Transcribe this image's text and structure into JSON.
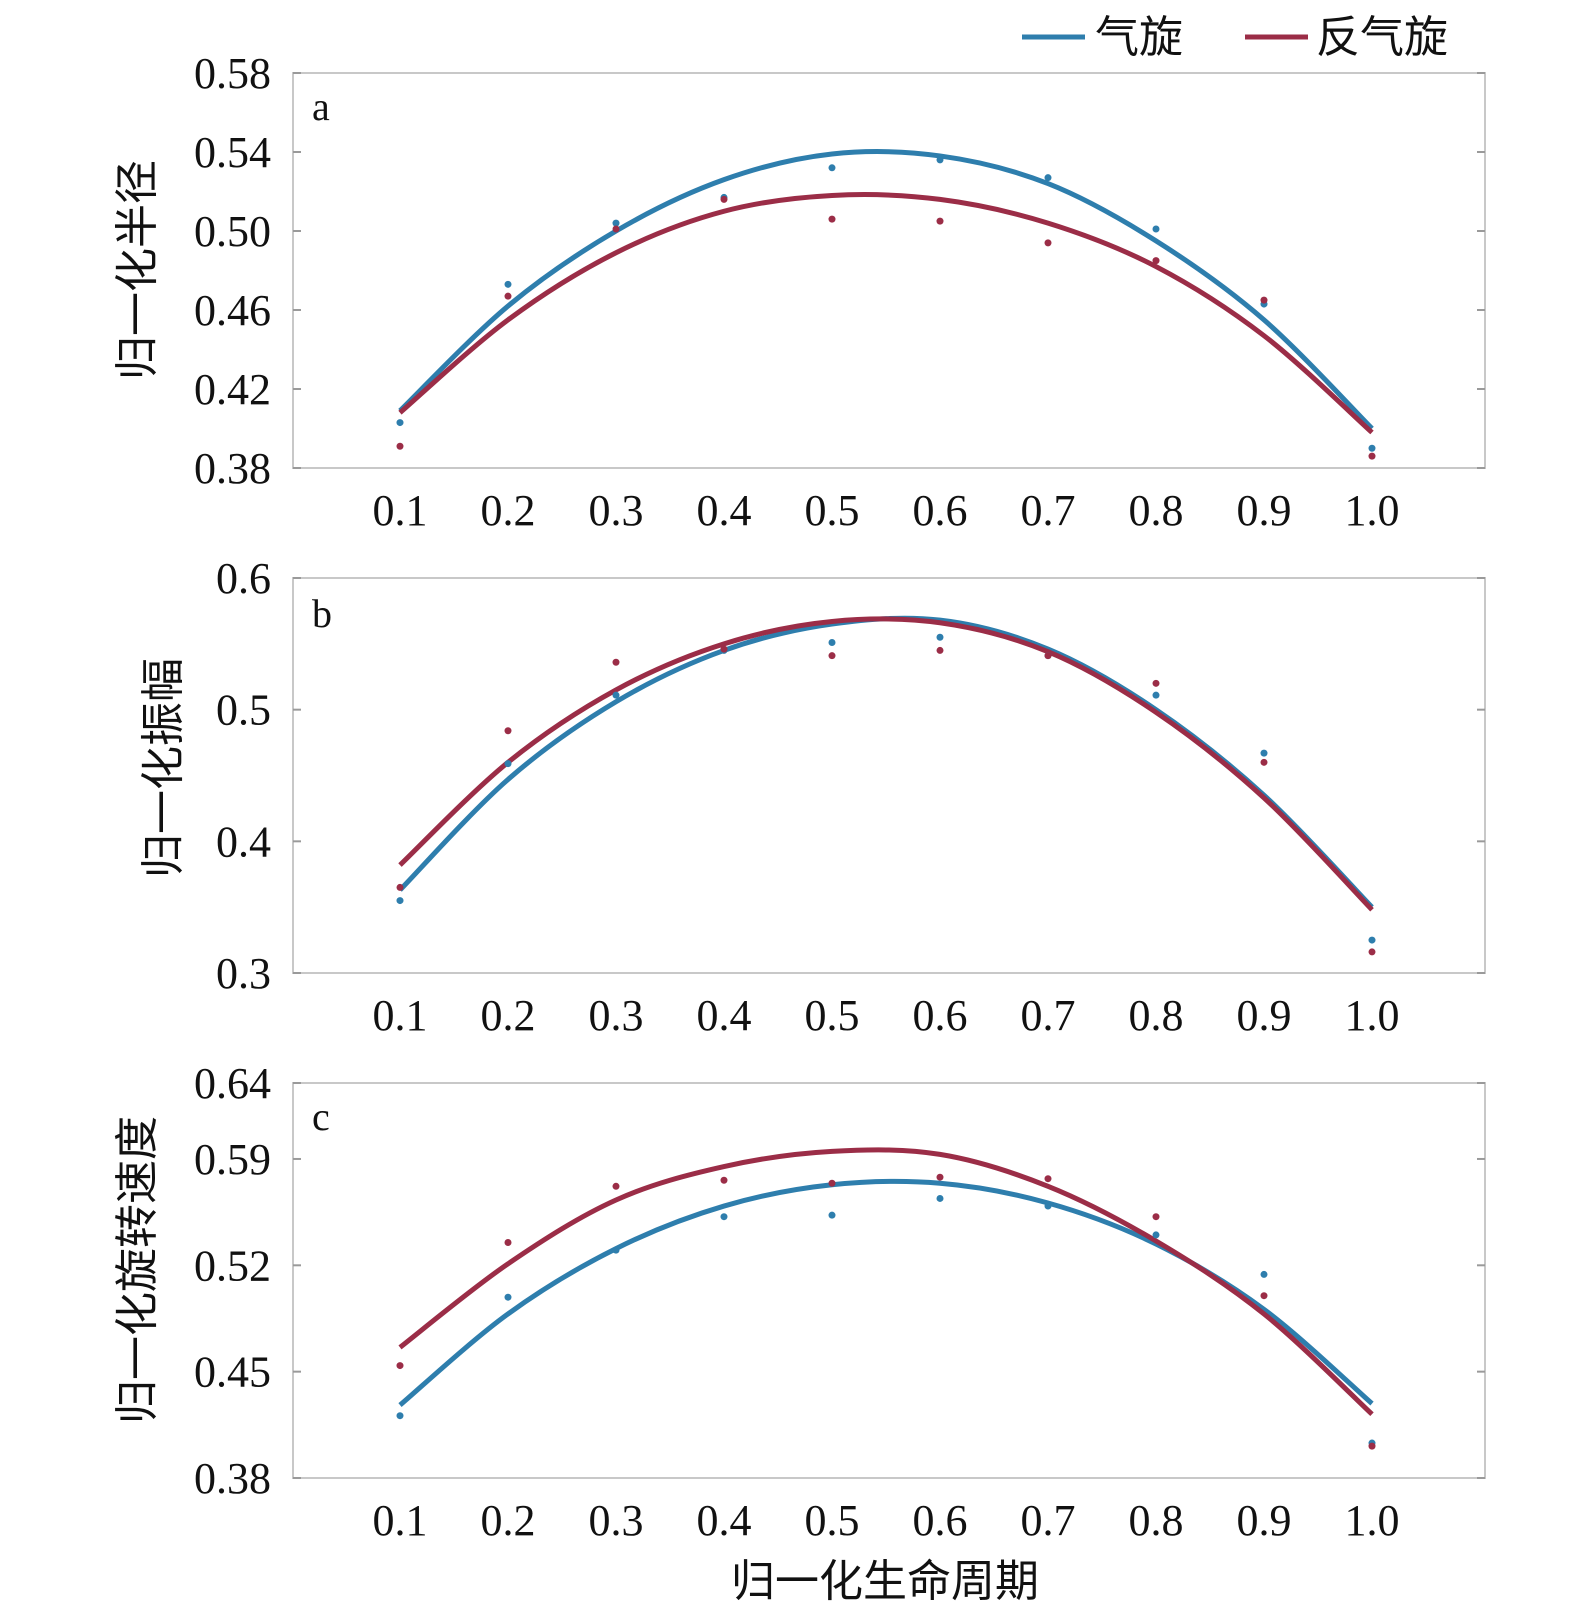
{
  "legend": [
    {
      "name": "气旋",
      "color": "#2E7EAD"
    },
    {
      "name": "反气旋",
      "color": "#9B2D47"
    }
  ],
  "xlabel": "归一化生命周期",
  "chart_data": [
    {
      "type": "scatter",
      "panel_label": "a",
      "ylabel": "归一化半径",
      "x": [
        0.1,
        0.2,
        0.3,
        0.4,
        0.5,
        0.6,
        0.7,
        0.8,
        0.9,
        1.0
      ],
      "x_tick_labels": [
        "0.1",
        "0.2",
        "0.3",
        "0.4",
        "0.5",
        "0.6",
        "0.7",
        "0.8",
        "0.9",
        "1.0"
      ],
      "y_ticks": [
        0.38,
        0.42,
        0.46,
        0.5,
        0.54,
        0.58
      ],
      "y_tick_labels": [
        "0.38",
        "0.42",
        "0.46",
        "0.50",
        "0.54",
        "0.58"
      ],
      "ylim": [
        0.38,
        0.58
      ],
      "series": [
        {
          "name": "气旋",
          "color": "#2E7EAD",
          "points": [
            0.403,
            0.473,
            0.504,
            0.517,
            0.532,
            0.536,
            0.527,
            0.501,
            0.463,
            0.39
          ],
          "fit": [
            0.409,
            0.462,
            0.5,
            0.526,
            0.539,
            0.538,
            0.524,
            0.495,
            0.455,
            0.4
          ]
        },
        {
          "name": "反气旋",
          "color": "#9B2D47",
          "points": [
            0.391,
            0.467,
            0.501,
            0.516,
            0.506,
            0.505,
            0.494,
            0.485,
            0.465,
            0.386
          ],
          "fit": [
            0.408,
            0.455,
            0.489,
            0.51,
            0.518,
            0.516,
            0.504,
            0.482,
            0.447,
            0.398
          ]
        }
      ]
    },
    {
      "type": "scatter",
      "panel_label": "b",
      "ylabel": "归一化振幅",
      "x": [
        0.1,
        0.2,
        0.3,
        0.4,
        0.5,
        0.6,
        0.7,
        0.8,
        0.9,
        1.0
      ],
      "x_tick_labels": [
        "0.1",
        "0.2",
        "0.3",
        "0.4",
        "0.5",
        "0.6",
        "0.7",
        "0.8",
        "0.9",
        "1.0"
      ],
      "y_ticks": [
        0.3,
        0.4,
        0.5,
        0.6
      ],
      "y_tick_labels": [
        "0.3",
        "0.4",
        "0.5",
        "0.6"
      ],
      "ylim": [
        0.3,
        0.6
      ],
      "series": [
        {
          "name": "气旋",
          "color": "#2E7EAD",
          "points": [
            0.355,
            0.459,
            0.511,
            0.545,
            0.551,
            0.555,
            0.541,
            0.511,
            0.467,
            0.325
          ],
          "fit": [
            0.363,
            0.447,
            0.506,
            0.545,
            0.565,
            0.568,
            0.546,
            0.5,
            0.435,
            0.35
          ]
        },
        {
          "name": "反气旋",
          "color": "#9B2D47",
          "points": [
            0.365,
            0.484,
            0.536,
            0.546,
            0.541,
            0.545,
            0.541,
            0.52,
            0.46,
            0.316
          ],
          "fit": [
            0.382,
            0.46,
            0.515,
            0.55,
            0.567,
            0.566,
            0.544,
            0.498,
            0.433,
            0.348
          ]
        }
      ]
    },
    {
      "type": "scatter",
      "panel_label": "c",
      "ylabel": "归一化旋转速度",
      "x": [
        0.1,
        0.2,
        0.3,
        0.4,
        0.5,
        0.6,
        0.7,
        0.8,
        0.9,
        1.0
      ],
      "x_tick_labels": [
        "0.1",
        "0.2",
        "0.3",
        "0.4",
        "0.5",
        "0.6",
        "0.7",
        "0.8",
        "0.9",
        "1.0"
      ],
      "y_ticks": [
        0.38,
        0.45,
        0.52,
        0.59,
        0.64
      ],
      "y_tick_labels": [
        "0.38",
        "0.45",
        "0.52",
        "0.59",
        "0.64"
      ],
      "ylim": [
        0.38,
        0.64
      ],
      "series": [
        {
          "name": "气旋",
          "color": "#2E7EAD",
          "points": [
            0.421,
            0.499,
            0.53,
            0.552,
            0.553,
            0.564,
            0.559,
            0.54,
            0.514,
            0.403
          ],
          "fit": [
            0.428,
            0.488,
            0.531,
            0.559,
            0.573,
            0.574,
            0.561,
            0.534,
            0.491,
            0.429
          ]
        },
        {
          "name": "反气旋",
          "color": "#9B2D47",
          "points": [
            0.454,
            0.535,
            0.572,
            0.576,
            0.574,
            0.578,
            0.577,
            0.552,
            0.5,
            0.401
          ],
          "fit": [
            0.466,
            0.521,
            0.563,
            0.585,
            0.595,
            0.593,
            0.572,
            0.536,
            0.488,
            0.422
          ]
        }
      ]
    }
  ]
}
